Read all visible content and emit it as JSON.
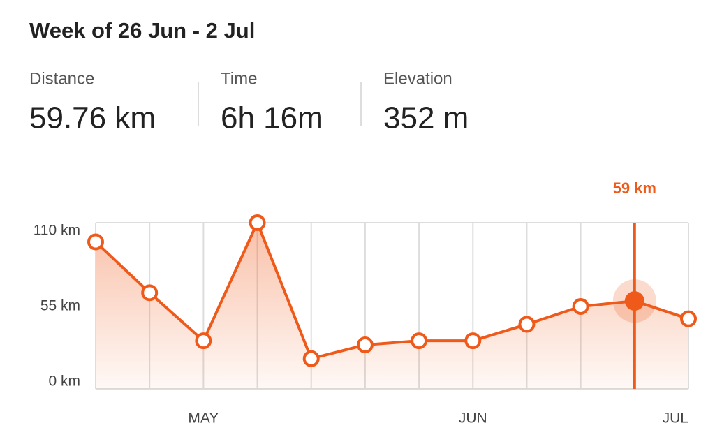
{
  "header": {
    "title": "Week of 26 Jun - 2 Jul",
    "stats": [
      {
        "label": "Distance",
        "value": "59.76 km"
      },
      {
        "label": "Time",
        "value": "6h 16m"
      },
      {
        "label": "Elevation",
        "value": "352 m"
      }
    ]
  },
  "chart_data": {
    "type": "line",
    "categories": [
      null,
      null,
      "MAY",
      null,
      null,
      null,
      null,
      "JUN",
      null,
      null,
      null,
      "JUL"
    ],
    "values": [
      102,
      65,
      30,
      116,
      17,
      27,
      30,
      30,
      42,
      55,
      59,
      46
    ],
    "value_labels": [
      null,
      null,
      null,
      null,
      null,
      null,
      null,
      null,
      null,
      null,
      "59 km",
      null
    ],
    "color": "#ef5a1a",
    "ylim": [
      -5,
      116
    ],
    "yticks": [
      {
        "value": 0,
        "label": "0 km"
      },
      {
        "value": 55,
        "label": "55 km"
      },
      {
        "value": 110,
        "label": "110 km"
      }
    ]
  }
}
